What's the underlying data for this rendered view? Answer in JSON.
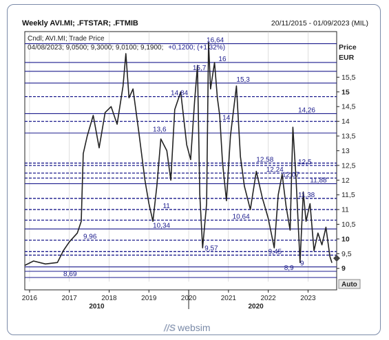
{
  "header": {
    "title": "Weekly AVI.MI; .FTSTAR; .FTMIB",
    "date_range": "20/11/2015 - 01/09/2023 (MIL)"
  },
  "legend": {
    "line1": "Cndl; AVI.MI; Trade Price",
    "line2_ohlc": "04/08/2023; 9,0500; 9,3000; 9,0100; 9,1900;",
    "line2_change": "+0,1200; (+1,32%)"
  },
  "axis": {
    "price_label": "Price",
    "currency_label": "EUR",
    "auto_button": "Auto"
  },
  "colors": {
    "level_line": "#1a1a8c",
    "price_line": "#222222",
    "label_text": "#1a1a8c",
    "frame": "#7a8aa8",
    "grid": "#c8c8c8"
  },
  "logo": {
    "mark": "//S",
    "text": "websim"
  },
  "chart_data": {
    "type": "line",
    "ylim": [
      8.55,
      17.05
    ],
    "xlim": [
      2015.88,
      2023.72
    ],
    "y_ticks": [
      {
        "v": 9,
        "label": "9",
        "bold": true
      },
      {
        "v": 9.5,
        "label": "9,5",
        "bold": false
      },
      {
        "v": 10,
        "label": "10",
        "bold": true
      },
      {
        "v": 10.5,
        "label": "10,5",
        "bold": false
      },
      {
        "v": 11,
        "label": "11",
        "bold": false
      },
      {
        "v": 11.5,
        "label": "11,5",
        "bold": false
      },
      {
        "v": 12,
        "label": "12",
        "bold": false
      },
      {
        "v": 12.5,
        "label": "12,5",
        "bold": false
      },
      {
        "v": 13,
        "label": "13",
        "bold": false
      },
      {
        "v": 13.5,
        "label": "13,5",
        "bold": false
      },
      {
        "v": 14,
        "label": "14",
        "bold": false
      },
      {
        "v": 14.5,
        "label": "14,5",
        "bold": false
      },
      {
        "v": 15,
        "label": "15",
        "bold": true
      },
      {
        "v": 15.5,
        "label": "15,5",
        "bold": false
      }
    ],
    "x_ticks": [
      {
        "v": 2016,
        "label": "2016"
      },
      {
        "v": 2017,
        "label": "2017"
      },
      {
        "v": 2018,
        "label": "2018"
      },
      {
        "v": 2019,
        "label": "2019"
      },
      {
        "v": 2020,
        "label": "2020"
      },
      {
        "v": 2021,
        "label": "2021"
      },
      {
        "v": 2022,
        "label": "2022"
      },
      {
        "v": 2023,
        "label": "2023"
      }
    ],
    "x_decades": [
      {
        "v": 2018,
        "label": "2010"
      },
      {
        "v": 2022,
        "label": "2020"
      }
    ],
    "levels": [
      {
        "v": 16.64,
        "label": "16,64",
        "lx": 2020.45,
        "dashed": false
      },
      {
        "v": 16,
        "label": "16",
        "lx": 2020.75,
        "dashed": false
      },
      {
        "v": 15.7,
        "label": "15,7",
        "lx": 2020.1,
        "dashed": false
      },
      {
        "v": 15.3,
        "label": "15,3",
        "lx": 2021.2,
        "dashed": false
      },
      {
        "v": 14.84,
        "label": "14,84",
        "lx": 2019.55,
        "dashed": true
      },
      {
        "v": 14.26,
        "label": "14,26",
        "lx": 2022.75,
        "dashed": false
      },
      {
        "v": 14,
        "label": "14",
        "lx": 2020.85,
        "dashed": true
      },
      {
        "v": 13.6,
        "label": "13,6",
        "lx": 2019.1,
        "dashed": false
      },
      {
        "v": 12.58,
        "label": "12,58",
        "lx": 2021.7,
        "dashed": true
      },
      {
        "v": 12.5,
        "label": "12,5",
        "lx": 2022.75,
        "dashed": true
      },
      {
        "v": 12.24,
        "label": "12,24",
        "lx": 2021.95,
        "dashed": true
      },
      {
        "v": 12.07,
        "label": "12,07",
        "lx": 2022.35,
        "dashed": true
      },
      {
        "v": 11.88,
        "label": "11,88",
        "lx": 2023.05,
        "dashed": false
      },
      {
        "v": 11.38,
        "label": "11,38",
        "lx": 2022.75,
        "dashed": true
      },
      {
        "v": 11,
        "label": "11",
        "lx": 2019.35,
        "dashed": true
      },
      {
        "v": 10.64,
        "label": "10,64",
        "lx": 2021.1,
        "dashed": true
      },
      {
        "v": 10.34,
        "label": "10,34",
        "lx": 2019.1,
        "dashed": false
      },
      {
        "v": 9.96,
        "label": "9,96",
        "lx": 2017.35,
        "dashed": true
      },
      {
        "v": 9.57,
        "label": "9,57",
        "lx": 2020.4,
        "dashed": true
      },
      {
        "v": 9.45,
        "label": "9,45",
        "lx": 2022.0,
        "dashed": true
      },
      {
        "v": 9.05,
        "label": "9",
        "lx": 2022.8,
        "dashed": false
      },
      {
        "v": 8.9,
        "label": "8,9",
        "lx": 2022.4,
        "dashed": false
      },
      {
        "v": 8.69,
        "label": "8,69",
        "lx": 2016.85,
        "dashed": false
      }
    ],
    "x": [
      2015.88,
      2016.1,
      2016.4,
      2016.7,
      2016.85,
      2017.0,
      2017.2,
      2017.3,
      2017.35,
      2017.45,
      2017.6,
      2017.75,
      2017.9,
      2018.05,
      2018.2,
      2018.35,
      2018.42,
      2018.5,
      2018.6,
      2018.75,
      2018.9,
      2019.0,
      2019.1,
      2019.2,
      2019.3,
      2019.45,
      2019.55,
      2019.65,
      2019.8,
      2019.95,
      2020.05,
      2020.15,
      2020.22,
      2020.28,
      2020.35,
      2020.45,
      2020.5,
      2020.55,
      2020.65,
      2020.72,
      2020.78,
      2020.85,
      2020.95,
      2021.05,
      2021.2,
      2021.3,
      2021.4,
      2021.55,
      2021.7,
      2021.85,
      2022.0,
      2022.15,
      2022.25,
      2022.35,
      2022.45,
      2022.55,
      2022.62,
      2022.7,
      2022.8,
      2022.88,
      2022.95,
      2023.05,
      2023.15,
      2023.25,
      2023.35,
      2023.45,
      2023.55,
      2023.6
    ],
    "y": [
      9.1,
      9.25,
      9.15,
      9.2,
      9.6,
      9.9,
      10.2,
      10.6,
      12.9,
      13.5,
      14.2,
      13.1,
      14.3,
      14.5,
      13.9,
      15.2,
      16.3,
      14.8,
      15.1,
      13.6,
      12.0,
      11.2,
      10.6,
      11.8,
      13.4,
      13.0,
      12.0,
      14.4,
      15.0,
      13.2,
      12.7,
      14.7,
      15.9,
      11.5,
      9.7,
      11.2,
      16.7,
      15.1,
      16.0,
      14.8,
      14.2,
      12.6,
      11.3,
      13.5,
      15.2,
      12.8,
      11.8,
      11.0,
      12.3,
      11.4,
      10.7,
      9.7,
      11.5,
      12.2,
      11.1,
      10.3,
      13.8,
      12.0,
      9.2,
      11.6,
      10.6,
      11.2,
      9.6,
      10.2,
      9.8,
      10.4,
      9.4,
      9.19
    ]
  }
}
